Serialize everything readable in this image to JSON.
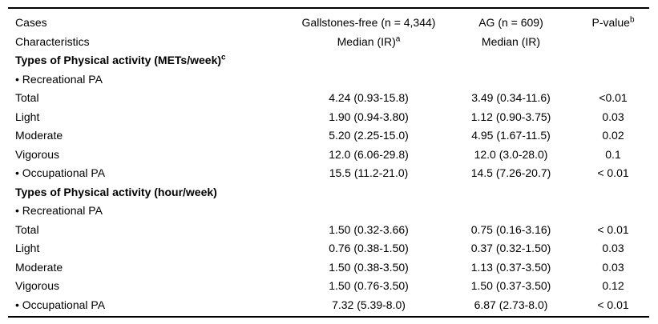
{
  "header": {
    "col1_line1": "Cases",
    "col1_line2": "Characteristics",
    "col2_line1": "Gallstones-free (n = 4,344)",
    "col2_line2": "Median (IR)",
    "col2_line2_sup": "a",
    "col3_line1": "AG (n = 609)",
    "col3_line2": "Median (IR)",
    "col4_label": "P-value",
    "col4_sup": "b"
  },
  "rows": [
    {
      "type": "section",
      "label": "Types of Physical activity (METs/week)",
      "sup": "c"
    },
    {
      "type": "bullet",
      "label": "• Recreational PA"
    },
    {
      "type": "data",
      "label": "Total",
      "gallstones": "4.24 (0.93-15.8)",
      "ag": "3.49 (0.34-11.6)",
      "p": "<0.01"
    },
    {
      "type": "data",
      "label": "Light",
      "gallstones": "1.90 (0.94-3.80)",
      "ag": "1.12 (0.90-3.75)",
      "p": "0.03"
    },
    {
      "type": "data",
      "label": "Moderate",
      "gallstones": "5.20 (2.25-15.0)",
      "ag": "4.95 (1.67-11.5)",
      "p": "0.02"
    },
    {
      "type": "data",
      "label": "Vigorous",
      "gallstones": "12.0 (6.06-29.8)",
      "ag": "12.0 (3.0-28.0)",
      "p": "0.1"
    },
    {
      "type": "data",
      "label": "• Occupational PA",
      "gallstones": "15.5 (11.2-21.0)",
      "ag": "14.5 (7.26-20.7)",
      "p": "< 0.01"
    },
    {
      "type": "section",
      "label": "Types of Physical activity (hour/week)",
      "sup": ""
    },
    {
      "type": "bullet",
      "label": "• Recreational PA"
    },
    {
      "type": "data",
      "label": "Total",
      "gallstones": "1.50 (0.32-3.66)",
      "ag": "0.75 (0.16-3.16)",
      "p": "< 0.01"
    },
    {
      "type": "data",
      "label": "Light",
      "gallstones": "0.76 (0.38-1.50)",
      "ag": "0.37 (0.32-1.50)",
      "p": "0.03"
    },
    {
      "type": "data",
      "label": "Moderate",
      "gallstones": "1.50 (0.38-3.50)",
      "ag": "1.13 (0.37-3.50)",
      "p": "0.03"
    },
    {
      "type": "data",
      "label": "Vigorous",
      "gallstones": "1.50 (0.76-3.50)",
      "ag": "1.50 (0.37-3.50)",
      "p": "0.12"
    },
    {
      "type": "data",
      "label": "• Occupational PA",
      "gallstones": "7.32 (5.39-8.0)",
      "ag": "6.87 (2.73-8.0)",
      "p": "< 0.01"
    }
  ],
  "colors": {
    "text": "#000000",
    "background": "#ffffff",
    "rule": "#000000"
  }
}
